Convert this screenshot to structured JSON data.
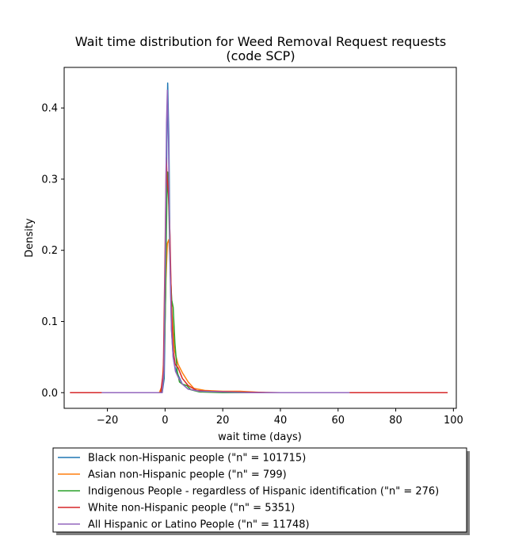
{
  "chart_data": {
    "type": "line",
    "title_line1": "Wait time distribution  for Weed Removal Request requests",
    "title_line2": "(code SCP)",
    "xlabel": "wait time (days)",
    "ylabel": "Density",
    "xlim": [
      -35,
      101
    ],
    "ylim": [
      -0.022,
      0.457
    ],
    "xticks": [
      -20,
      0,
      20,
      40,
      60,
      80,
      100
    ],
    "xtick_labels": [
      "−20",
      "0",
      "20",
      "40",
      "60",
      "80",
      "100"
    ],
    "yticks": [
      0.0,
      0.1,
      0.2,
      0.3,
      0.4
    ],
    "ytick_labels": [
      "0.0",
      "0.1",
      "0.2",
      "0.3",
      "0.4"
    ],
    "grid": false,
    "legend_position": "below",
    "series": [
      {
        "name": "Black non-Hispanic people (\"n\" = 101715)",
        "color": "#1f77b4",
        "points": [
          [
            -22,
            0
          ],
          [
            -1,
            0
          ],
          [
            -0.3,
            0.02
          ],
          [
            0.2,
            0.15
          ],
          [
            0.6,
            0.35
          ],
          [
            0.9,
            0.435
          ],
          [
            1.3,
            0.36
          ],
          [
            1.7,
            0.2
          ],
          [
            2.2,
            0.09
          ],
          [
            2.8,
            0.05
          ],
          [
            3.5,
            0.035
          ],
          [
            4.5,
            0.025
          ],
          [
            6,
            0.012
          ],
          [
            8,
            0.005
          ],
          [
            12,
            0.002
          ],
          [
            20,
            0.001
          ],
          [
            30,
            0
          ],
          [
            85,
            0
          ]
        ]
      },
      {
        "name": "Asian non-Hispanic people (\"n\" = 799)",
        "color": "#ff7f0e",
        "points": [
          [
            -28,
            0
          ],
          [
            -2,
            0
          ],
          [
            -1,
            0.01
          ],
          [
            -0.3,
            0.06
          ],
          [
            0.3,
            0.16
          ],
          [
            0.8,
            0.21
          ],
          [
            1.3,
            0.215
          ],
          [
            1.8,
            0.18
          ],
          [
            2.4,
            0.11
          ],
          [
            3.2,
            0.06
          ],
          [
            4.5,
            0.04
          ],
          [
            6,
            0.028
          ],
          [
            8,
            0.015
          ],
          [
            10,
            0.006
          ],
          [
            14,
            0.003
          ],
          [
            20,
            0.002
          ],
          [
            26,
            0.002
          ],
          [
            35,
            0
          ],
          [
            85,
            0
          ]
        ]
      },
      {
        "name": "Indigenous People - regardless of Hispanic identification (\"n\" = 276)",
        "color": "#2ca02c",
        "points": [
          [
            -22,
            0
          ],
          [
            -1.2,
            0
          ],
          [
            -0.5,
            0.02
          ],
          [
            0.1,
            0.12
          ],
          [
            0.6,
            0.27
          ],
          [
            0.9,
            0.31
          ],
          [
            1.3,
            0.26
          ],
          [
            1.8,
            0.17
          ],
          [
            2.3,
            0.13
          ],
          [
            2.8,
            0.12
          ],
          [
            3.4,
            0.07
          ],
          [
            4.2,
            0.03
          ],
          [
            5,
            0.015
          ],
          [
            6,
            0.012
          ],
          [
            7.5,
            0.01
          ],
          [
            9,
            0.004
          ],
          [
            12,
            0.001
          ],
          [
            20,
            0
          ],
          [
            65,
            0
          ]
        ]
      },
      {
        "name": "White non-Hispanic people (\"n\" = 5351)",
        "color": "#d62728",
        "points": [
          [
            -33,
            0
          ],
          [
            -1.5,
            0
          ],
          [
            -0.6,
            0.03
          ],
          [
            0,
            0.2
          ],
          [
            0.4,
            0.33
          ],
          [
            0.7,
            0.3
          ],
          [
            1.2,
            0.28
          ],
          [
            1.7,
            0.22
          ],
          [
            2.2,
            0.12
          ],
          [
            2.8,
            0.06
          ],
          [
            3.5,
            0.04
          ],
          [
            4.5,
            0.035
          ],
          [
            6,
            0.02
          ],
          [
            8,
            0.01
          ],
          [
            11,
            0.003
          ],
          [
            16,
            0.002
          ],
          [
            25,
            0.001
          ],
          [
            40,
            0
          ],
          [
            98,
            0
          ]
        ]
      },
      {
        "name": "All Hispanic or Latino People (\"n\" = 11748)",
        "color": "#9467bd",
        "points": [
          [
            -22,
            0
          ],
          [
            -1,
            0
          ],
          [
            -0.4,
            0.03
          ],
          [
            0.1,
            0.2
          ],
          [
            0.5,
            0.38
          ],
          [
            0.8,
            0.425
          ],
          [
            1.2,
            0.35
          ],
          [
            1.7,
            0.18
          ],
          [
            2.2,
            0.09
          ],
          [
            2.8,
            0.05
          ],
          [
            3.6,
            0.03
          ],
          [
            4.5,
            0.022
          ],
          [
            6,
            0.012
          ],
          [
            8,
            0.005
          ],
          [
            12,
            0.002
          ],
          [
            20,
            0.001
          ],
          [
            30,
            0
          ],
          [
            64,
            0
          ]
        ]
      }
    ]
  }
}
